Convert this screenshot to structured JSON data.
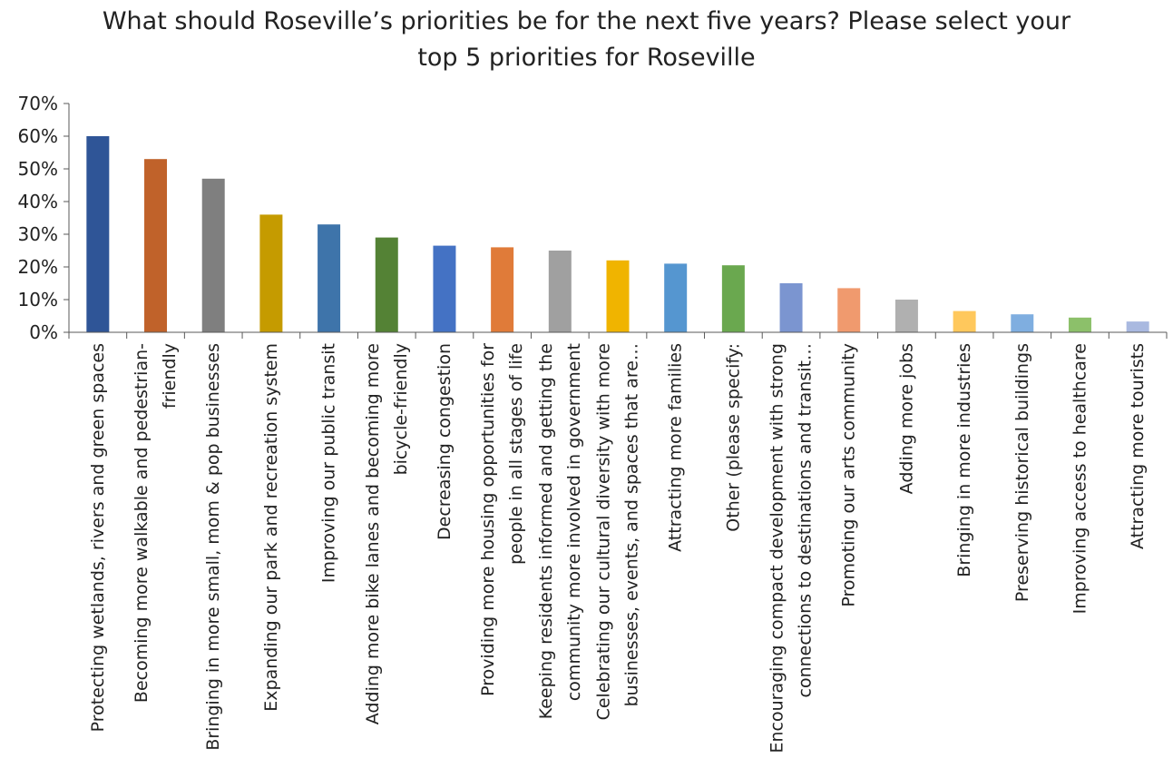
{
  "chart_data": {
    "type": "bar",
    "title": "What should Roseville’s priorities be for the next five years? Please select your top 5 priorities for Roseville",
    "xlabel": "",
    "ylabel": "",
    "ylim": [
      0,
      0.7
    ],
    "yticks": [
      "0%",
      "10%",
      "20%",
      "30%",
      "40%",
      "50%",
      "60%",
      "70%"
    ],
    "grid": false,
    "legend": "none",
    "categories": [
      [
        "Protecting wetlands, rivers and green spaces"
      ],
      [
        "Becoming more walkable and pedestrian-",
        "friendly"
      ],
      [
        "Bringing in more small, mom & pop businesses"
      ],
      [
        "Expanding our park and recreation system"
      ],
      [
        "Improving our public transit"
      ],
      [
        "Adding more bike lanes and becoming more",
        "bicycle-friendly"
      ],
      [
        "Decreasing congestion"
      ],
      [
        "Providing more housing opportunities for",
        "people in all stages of life"
      ],
      [
        "Keeping residents informed and getting the",
        "community more involved in government"
      ],
      [
        "Celebrating our cultural diversity with more",
        "businesses, events, and spaces that are…"
      ],
      [
        "Attracting more families"
      ],
      [
        "Other (please specify:"
      ],
      [
        "Encouraging compact development with strong",
        "connections to destinations and transit…"
      ],
      [
        "Promoting our arts community"
      ],
      [
        "Adding more jobs"
      ],
      [
        "Bringing in more industries"
      ],
      [
        "Preserving historical buildings"
      ],
      [
        "Improving access to healthcare"
      ],
      [
        "Attracting more tourists"
      ]
    ],
    "values": [
      0.6,
      0.53,
      0.47,
      0.36,
      0.33,
      0.29,
      0.265,
      0.26,
      0.25,
      0.22,
      0.21,
      0.205,
      0.15,
      0.135,
      0.1,
      0.065,
      0.055,
      0.045,
      0.033
    ],
    "colors": [
      "#2f5597",
      "#c0622a",
      "#7f7f7f",
      "#c59b00",
      "#3e74aa",
      "#548235",
      "#4472c4",
      "#e07b39",
      "#a0a0a0",
      "#f0b400",
      "#5596d0",
      "#6aa84f",
      "#7b95d0",
      "#f09a6e",
      "#b0b0b0",
      "#ffc85c",
      "#7faee0",
      "#8cc06a",
      "#a9b9e0"
    ]
  }
}
